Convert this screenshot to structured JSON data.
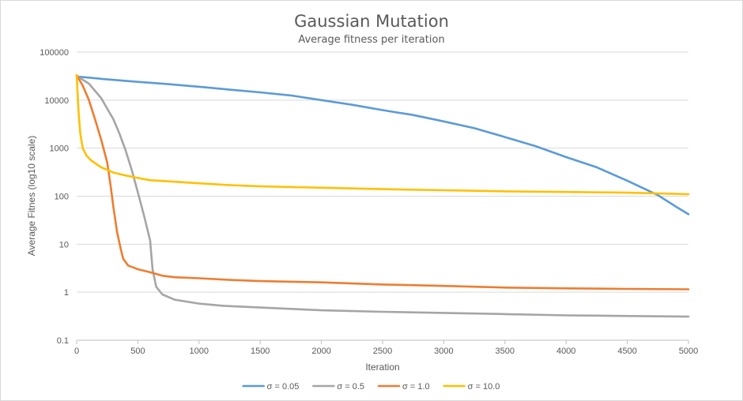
{
  "chart_data": {
    "type": "line",
    "title": "Gaussian Mutation",
    "subtitle": "Average fitness per iteration",
    "xlabel": "Iteration",
    "ylabel": "Average Fitnes (log10 scale)",
    "xlim": [
      0,
      5000
    ],
    "ylim": [
      0.1,
      100000
    ],
    "yscale": "log",
    "x_ticks": [
      "0",
      "500",
      "1000",
      "1500",
      "2000",
      "2500",
      "3000",
      "3500",
      "4000",
      "4500",
      "5000"
    ],
    "y_ticks": [
      "0.1",
      "1",
      "10",
      "100",
      "1000",
      "10000",
      "100000"
    ],
    "grid": "horizontal",
    "legend_position": "bottom",
    "series": [
      {
        "name": "σ = 0.05",
        "color": "#5b9bd5",
        "points": [
          [
            0,
            31000
          ],
          [
            250,
            27000
          ],
          [
            500,
            24000
          ],
          [
            750,
            21500
          ],
          [
            1000,
            19000
          ],
          [
            1250,
            16500
          ],
          [
            1500,
            14500
          ],
          [
            1750,
            12500
          ],
          [
            2000,
            10000
          ],
          [
            2250,
            8000
          ],
          [
            2500,
            6200
          ],
          [
            2750,
            4900
          ],
          [
            3000,
            3600
          ],
          [
            3250,
            2600
          ],
          [
            3500,
            1700
          ],
          [
            3750,
            1100
          ],
          [
            4000,
            650
          ],
          [
            4250,
            400
          ],
          [
            4500,
            210
          ],
          [
            4750,
            105
          ],
          [
            4900,
            60
          ],
          [
            5000,
            42
          ]
        ]
      },
      {
        "name": "σ = 0.5",
        "color": "#a5a5a5",
        "points": [
          [
            0,
            32000
          ],
          [
            100,
            22000
          ],
          [
            200,
            11000
          ],
          [
            300,
            4000
          ],
          [
            350,
            2000
          ],
          [
            400,
            900
          ],
          [
            450,
            350
          ],
          [
            500,
            120
          ],
          [
            550,
            40
          ],
          [
            600,
            12
          ],
          [
            620,
            3
          ],
          [
            650,
            1.3
          ],
          [
            700,
            0.9
          ],
          [
            800,
            0.7
          ],
          [
            1000,
            0.58
          ],
          [
            1200,
            0.52
          ],
          [
            1500,
            0.48
          ],
          [
            2000,
            0.42
          ],
          [
            2500,
            0.39
          ],
          [
            3000,
            0.37
          ],
          [
            3500,
            0.35
          ],
          [
            4000,
            0.33
          ],
          [
            4500,
            0.32
          ],
          [
            5000,
            0.31
          ]
        ]
      },
      {
        "name": "σ = 1.0",
        "color": "#ed7d31",
        "points": [
          [
            0,
            33000
          ],
          [
            50,
            20000
          ],
          [
            100,
            10000
          ],
          [
            150,
            4000
          ],
          [
            200,
            1500
          ],
          [
            250,
            500
          ],
          [
            280,
            150
          ],
          [
            300,
            60
          ],
          [
            330,
            18
          ],
          [
            360,
            8
          ],
          [
            380,
            5
          ],
          [
            420,
            3.6
          ],
          [
            500,
            3
          ],
          [
            600,
            2.6
          ],
          [
            700,
            2.2
          ],
          [
            800,
            2.05
          ],
          [
            1000,
            1.95
          ],
          [
            1250,
            1.8
          ],
          [
            1500,
            1.7
          ],
          [
            2000,
            1.6
          ],
          [
            2500,
            1.45
          ],
          [
            3000,
            1.35
          ],
          [
            3500,
            1.25
          ],
          [
            4000,
            1.2
          ],
          [
            4500,
            1.17
          ],
          [
            5000,
            1.15
          ]
        ]
      },
      {
        "name": "σ = 10.0",
        "color": "#ffc000",
        "points": [
          [
            0,
            33000
          ],
          [
            15,
            6000
          ],
          [
            30,
            2000
          ],
          [
            50,
            1000
          ],
          [
            80,
            700
          ],
          [
            120,
            550
          ],
          [
            200,
            400
          ],
          [
            300,
            310
          ],
          [
            400,
            270
          ],
          [
            500,
            240
          ],
          [
            600,
            215
          ],
          [
            800,
            200
          ],
          [
            1000,
            185
          ],
          [
            1250,
            170
          ],
          [
            1500,
            160
          ],
          [
            2000,
            150
          ],
          [
            2500,
            140
          ],
          [
            3000,
            133
          ],
          [
            3500,
            126
          ],
          [
            4000,
            122
          ],
          [
            4500,
            118
          ],
          [
            5000,
            110
          ]
        ]
      }
    ]
  }
}
